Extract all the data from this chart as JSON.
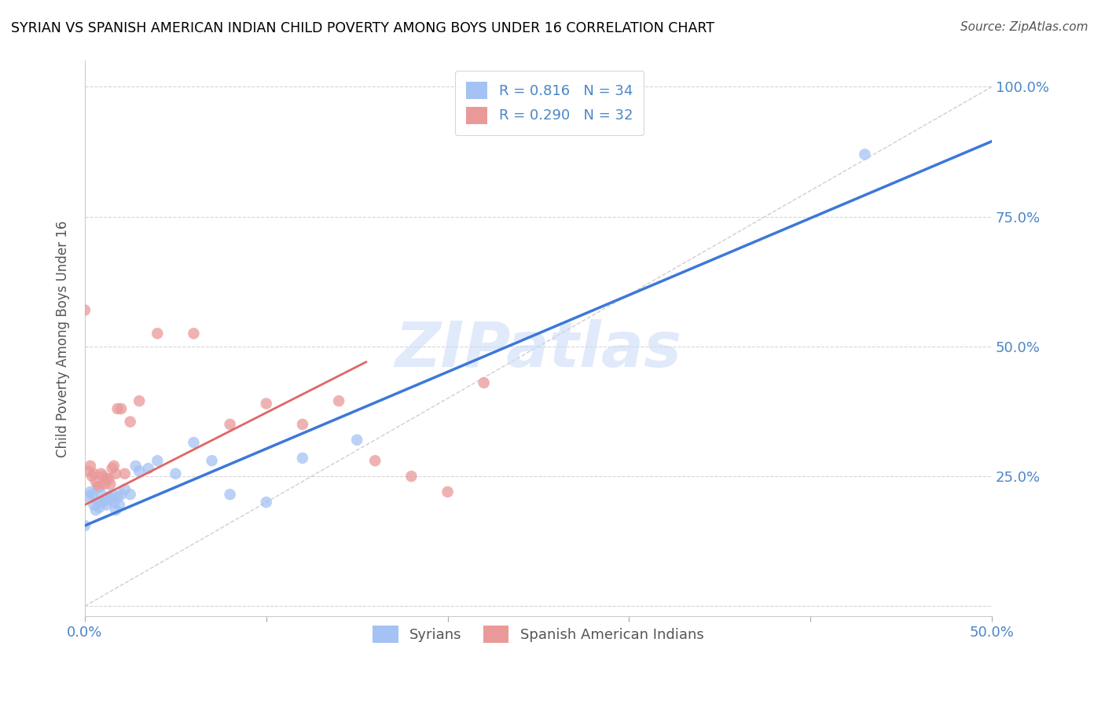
{
  "title": "SYRIAN VS SPANISH AMERICAN INDIAN CHILD POVERTY AMONG BOYS UNDER 16 CORRELATION CHART",
  "source": "Source: ZipAtlas.com",
  "ylabel": "Child Poverty Among Boys Under 16",
  "xlabel": "",
  "xlim": [
    0.0,
    0.5
  ],
  "ylim": [
    -0.02,
    1.05
  ],
  "xticks": [
    0.0,
    0.1,
    0.2,
    0.3,
    0.4,
    0.5
  ],
  "xtick_labels": [
    "0.0%",
    "",
    "",
    "",
    "",
    "50.0%"
  ],
  "ytick_labels": [
    "",
    "25.0%",
    "50.0%",
    "75.0%",
    "100.0%"
  ],
  "yticks": [
    0.0,
    0.25,
    0.5,
    0.75,
    1.0
  ],
  "watermark": "ZIPatlas",
  "blue_color": "#a4c2f4",
  "pink_color": "#ea9999",
  "blue_line_color": "#3c78d8",
  "pink_line_color": "#e06666",
  "axis_label_color": "#4a86c8",
  "title_color": "#000000",
  "background_color": "#ffffff",
  "grid_color": "#cccccc",
  "syrians_x": [
    0.0,
    0.002,
    0.003,
    0.004,
    0.005,
    0.006,
    0.007,
    0.008,
    0.009,
    0.01,
    0.011,
    0.012,
    0.013,
    0.014,
    0.015,
    0.016,
    0.017,
    0.018,
    0.019,
    0.02,
    0.022,
    0.025,
    0.028,
    0.03,
    0.035,
    0.04,
    0.05,
    0.06,
    0.07,
    0.08,
    0.1,
    0.12,
    0.15,
    0.43
  ],
  "syrians_y": [
    0.155,
    0.21,
    0.22,
    0.215,
    0.195,
    0.185,
    0.2,
    0.19,
    0.215,
    0.2,
    0.205,
    0.195,
    0.21,
    0.205,
    0.215,
    0.2,
    0.185,
    0.21,
    0.195,
    0.215,
    0.225,
    0.215,
    0.27,
    0.26,
    0.265,
    0.28,
    0.255,
    0.315,
    0.28,
    0.215,
    0.2,
    0.285,
    0.32,
    0.87
  ],
  "spanish_x": [
    0.0,
    0.002,
    0.003,
    0.004,
    0.005,
    0.006,
    0.007,
    0.008,
    0.009,
    0.01,
    0.011,
    0.012,
    0.013,
    0.014,
    0.015,
    0.016,
    0.017,
    0.018,
    0.02,
    0.022,
    0.025,
    0.03,
    0.04,
    0.06,
    0.08,
    0.1,
    0.12,
    0.14,
    0.16,
    0.18,
    0.2,
    0.22
  ],
  "spanish_y": [
    0.57,
    0.26,
    0.27,
    0.25,
    0.255,
    0.24,
    0.23,
    0.23,
    0.255,
    0.25,
    0.235,
    0.245,
    0.245,
    0.235,
    0.265,
    0.27,
    0.255,
    0.38,
    0.38,
    0.255,
    0.355,
    0.395,
    0.525,
    0.525,
    0.35,
    0.39,
    0.35,
    0.395,
    0.28,
    0.25,
    0.22,
    0.43
  ],
  "blue_trend_x": [
    0.0,
    0.5
  ],
  "blue_trend_y": [
    0.155,
    0.895
  ],
  "pink_trend_x": [
    0.0,
    0.155
  ],
  "pink_trend_y": [
    0.195,
    0.47
  ]
}
